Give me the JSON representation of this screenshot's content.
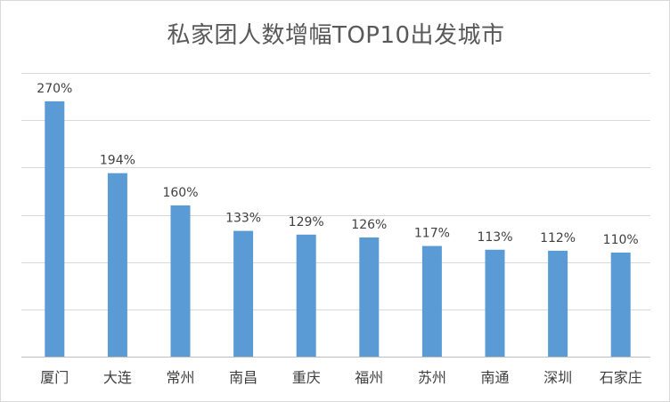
{
  "chart_data": {
    "type": "bar",
    "title": "私家团人数增幅TOP10出发城市",
    "categories": [
      "厦门",
      "大连",
      "常州",
      "南昌",
      "重庆",
      "福州",
      "苏州",
      "南通",
      "深圳",
      "石家庄"
    ],
    "values": [
      270,
      194,
      160,
      133,
      129,
      126,
      117,
      113,
      112,
      110
    ],
    "data_labels": [
      "270%",
      "194%",
      "160%",
      "133%",
      "129%",
      "126%",
      "117%",
      "113%",
      "112%",
      "110%"
    ],
    "xlabel": "",
    "ylabel": "",
    "ylim": [
      0,
      300
    ],
    "gridlines": true,
    "legend": "none",
    "bar_color": "#5b9bd5",
    "unit": "%"
  }
}
